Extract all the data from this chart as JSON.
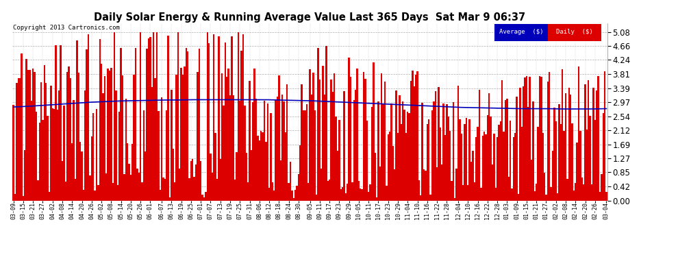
{
  "title": "Daily Solar Energy & Running Average Value Last 365 Days  Sat Mar 9 06:37",
  "copyright": "Copyright 2013 Cartronics.com",
  "bar_color": "#dd0000",
  "line_color": "#0000bb",
  "background_color": "#ffffff",
  "plot_bg_color": "#ffffff",
  "grid_color": "#999999",
  "yticks": [
    0.0,
    0.42,
    0.85,
    1.27,
    1.69,
    2.12,
    2.54,
    2.97,
    3.39,
    3.81,
    4.24,
    4.66,
    5.08
  ],
  "ylim": [
    0.0,
    5.35
  ],
  "legend_avg_color": "#0000bb",
  "legend_daily_color": "#dd0000",
  "legend_text_color": "#ffffff",
  "x_labels": [
    "03-09",
    "03-15",
    "03-21",
    "03-27",
    "04-02",
    "04-08",
    "04-14",
    "04-20",
    "04-26",
    "05-02",
    "05-08",
    "05-14",
    "05-20",
    "05-26",
    "06-01",
    "06-07",
    "06-13",
    "06-19",
    "06-25",
    "07-01",
    "07-07",
    "07-13",
    "07-19",
    "07-25",
    "07-31",
    "08-06",
    "08-12",
    "08-18",
    "08-24",
    "08-30",
    "09-05",
    "09-11",
    "09-17",
    "09-23",
    "09-29",
    "10-05",
    "10-11",
    "10-17",
    "10-23",
    "10-29",
    "11-04",
    "11-10",
    "11-16",
    "11-22",
    "11-28",
    "12-04",
    "12-10",
    "12-16",
    "12-22",
    "12-28",
    "01-03",
    "01-09",
    "01-15",
    "01-21",
    "01-27",
    "02-02",
    "02-08",
    "02-14",
    "02-20",
    "02-26",
    "03-04"
  ],
  "avg_shape": [
    2.82,
    2.84,
    2.87,
    2.9,
    2.93,
    2.96,
    2.98,
    3.0,
    3.01,
    3.02,
    3.03,
    3.03,
    3.04,
    3.04,
    3.04,
    3.04,
    3.04,
    3.04,
    3.03,
    3.02,
    3.01,
    2.99,
    2.97,
    2.95,
    2.93,
    2.91,
    2.89,
    2.87,
    2.85,
    2.83,
    2.81,
    2.8,
    2.79,
    2.78,
    2.77,
    2.77,
    2.77,
    2.76,
    2.76,
    2.76,
    2.77
  ]
}
